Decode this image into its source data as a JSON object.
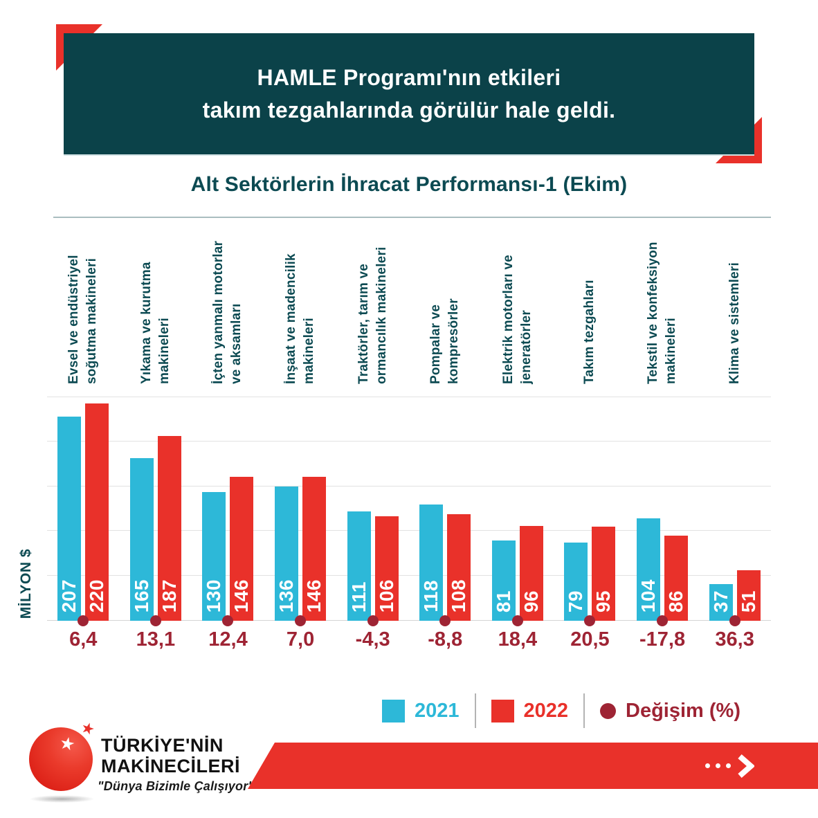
{
  "header": {
    "title_line1": "HAMLE Programı'nın etkileri",
    "title_line2": "takım tezgahlarında görülür hale geldi."
  },
  "subtitle": "Alt Sektörlerin İhracat Performansı-1 (Ekim)",
  "chart_data": {
    "type": "bar",
    "title": "Alt Sektörlerin İhracat Performansı-1 (Ekim)",
    "ylabel": "MİLYON $",
    "ylim": [
      0,
      227
    ],
    "grid": "horizontal",
    "gridline_count": 6,
    "legend_position": "bottom-right",
    "categories": [
      "Evsel ve endüstriyel\nsoğutma makineleri",
      "Yıkama ve kurutma\nmakineleri",
      "İçten yanmalı motorlar\nve aksamları",
      "İnşaat ve madencilik\nmakineleri",
      "Traktörler, tarım ve\normancılık makineleri",
      "Pompalar ve\nkompresörler",
      "Elektrik motorları ve\njeneratörler",
      "Takım tezgahları",
      "Tekstil ve konfeksiyon\nmakineleri",
      "Klima ve sistemleri"
    ],
    "series": [
      {
        "name": "2021",
        "color": "#2db8d8",
        "values": [
          207,
          165,
          130,
          136,
          111,
          118,
          81,
          79,
          104,
          37
        ]
      },
      {
        "name": "2022",
        "color": "#e9312a",
        "values": [
          220,
          187,
          146,
          146,
          106,
          108,
          96,
          95,
          86,
          51
        ]
      }
    ],
    "change": {
      "name": "Değişim (%)",
      "color": "#9e2434",
      "values": [
        "6,4",
        "13,1",
        "12,4",
        "7,0",
        "-4,3",
        "-8,8",
        "18,4",
        "20,5",
        "-17,8",
        "36,3"
      ]
    }
  },
  "legend": {
    "items": [
      {
        "label": "2021",
        "swatch": "square",
        "color": "#2db8d8"
      },
      {
        "label": "2022",
        "swatch": "square",
        "color": "#e9312a"
      },
      {
        "label": "Değişim (%)",
        "swatch": "circle",
        "color": "#9e2434"
      }
    ]
  },
  "footer": {
    "brand_line1": "TÜRKİYE'NİN",
    "brand_line2": "MAKİNECİLERİ",
    "tagline": "\"Dünya Bizimle Çalışıyor\"",
    "star_icon": "★"
  },
  "colors": {
    "header_bg": "#0b4249",
    "accent_red": "#e9312a",
    "cyan": "#2db8d8",
    "dark_red": "#9e2434",
    "dark_teal_text": "#0c4a52"
  }
}
